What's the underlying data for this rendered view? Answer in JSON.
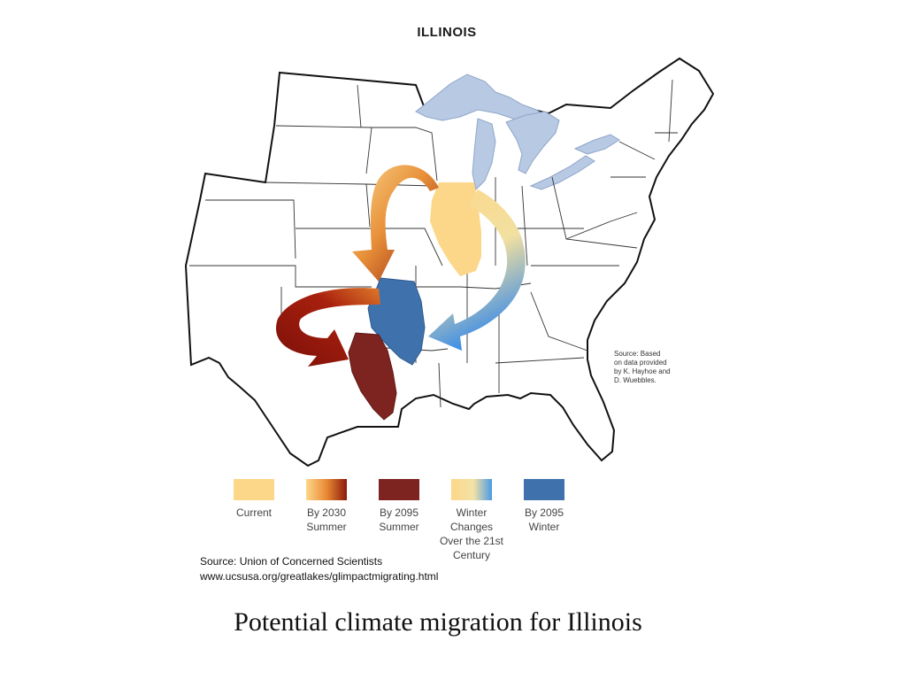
{
  "map": {
    "title": "ILLINOIS",
    "source_note": "Source: Based\non data provided\nby K. Hayhoe and\nD. Wuebbles.",
    "colors": {
      "lakes": "#b8c9e4",
      "state_lines": "#222222",
      "current": "#fcd78a",
      "summer_2030_start": "#f7d07a",
      "summer_2030_end": "#8b1a0a",
      "summer_2095": "#7e2420",
      "winter_start": "#fcd78a",
      "winter_end": "#4a9ae6",
      "winter_2095": "#3f72ad"
    },
    "legend": [
      {
        "id": "current",
        "label": "Current"
      },
      {
        "id": "by-2030-summer",
        "label": "By 2030\nSummer"
      },
      {
        "id": "by-2095-summer",
        "label": "By 2095\nSummer"
      },
      {
        "id": "winter-changes",
        "label": "Winter\nChanges\nOver the 21st\nCentury"
      },
      {
        "id": "by-2095-winter",
        "label": "By 2095\nWinter"
      }
    ]
  },
  "source": {
    "line1": "Source: Union of Concerned Scientists",
    "line2": "www.ucsusa.org/greatlakes/glimpactmigrating.html"
  },
  "caption": "Potential climate migration for Illinois"
}
